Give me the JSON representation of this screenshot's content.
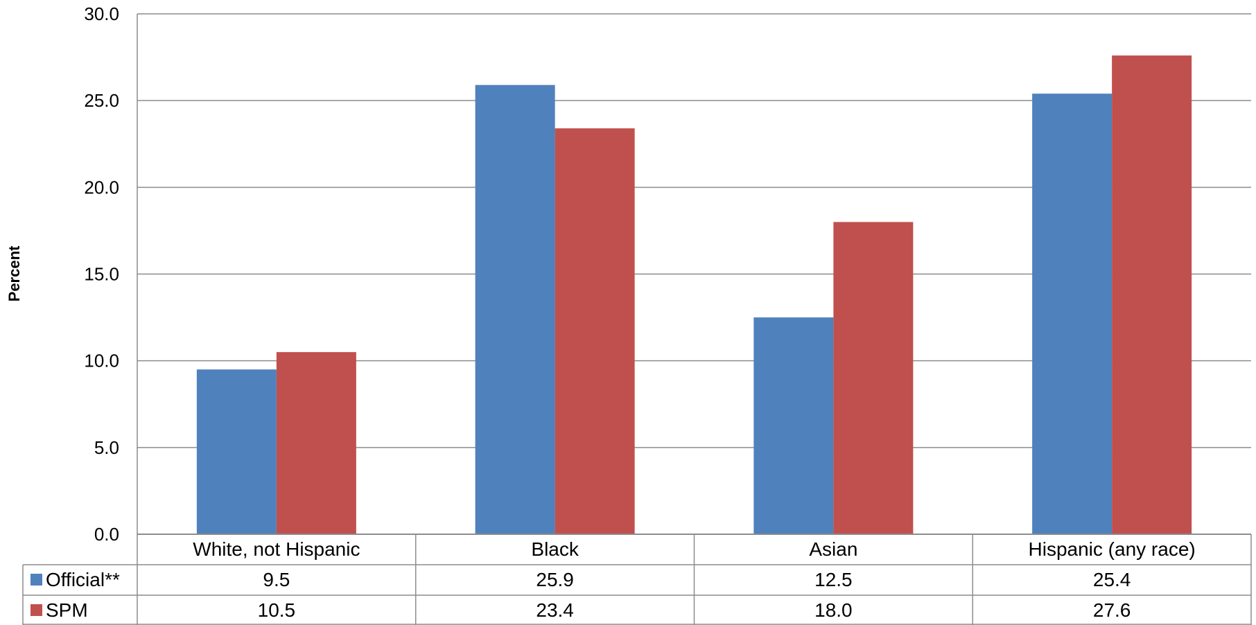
{
  "chart_data": {
    "type": "bar",
    "ylabel": "Percent",
    "ylim": [
      0,
      30
    ],
    "yticks": [
      "0.0",
      "5.0",
      "10.0",
      "15.0",
      "20.0",
      "25.0",
      "30.0"
    ],
    "grid": true,
    "legend": "data-table",
    "categories": [
      "White, not Hispanic",
      "Black",
      "Asian",
      "Hispanic (any race)"
    ],
    "series": [
      {
        "name": "Official**",
        "color": "#4F81BD",
        "values": [
          9.5,
          25.9,
          12.5,
          25.4
        ],
        "labels": [
          "9.5",
          "25.9",
          "12.5",
          "25.4"
        ]
      },
      {
        "name": "SPM",
        "color": "#C0504D",
        "values": [
          10.5,
          23.4,
          18.0,
          27.6
        ],
        "labels": [
          "10.5",
          "23.4",
          "18.0",
          "27.6"
        ]
      }
    ]
  }
}
